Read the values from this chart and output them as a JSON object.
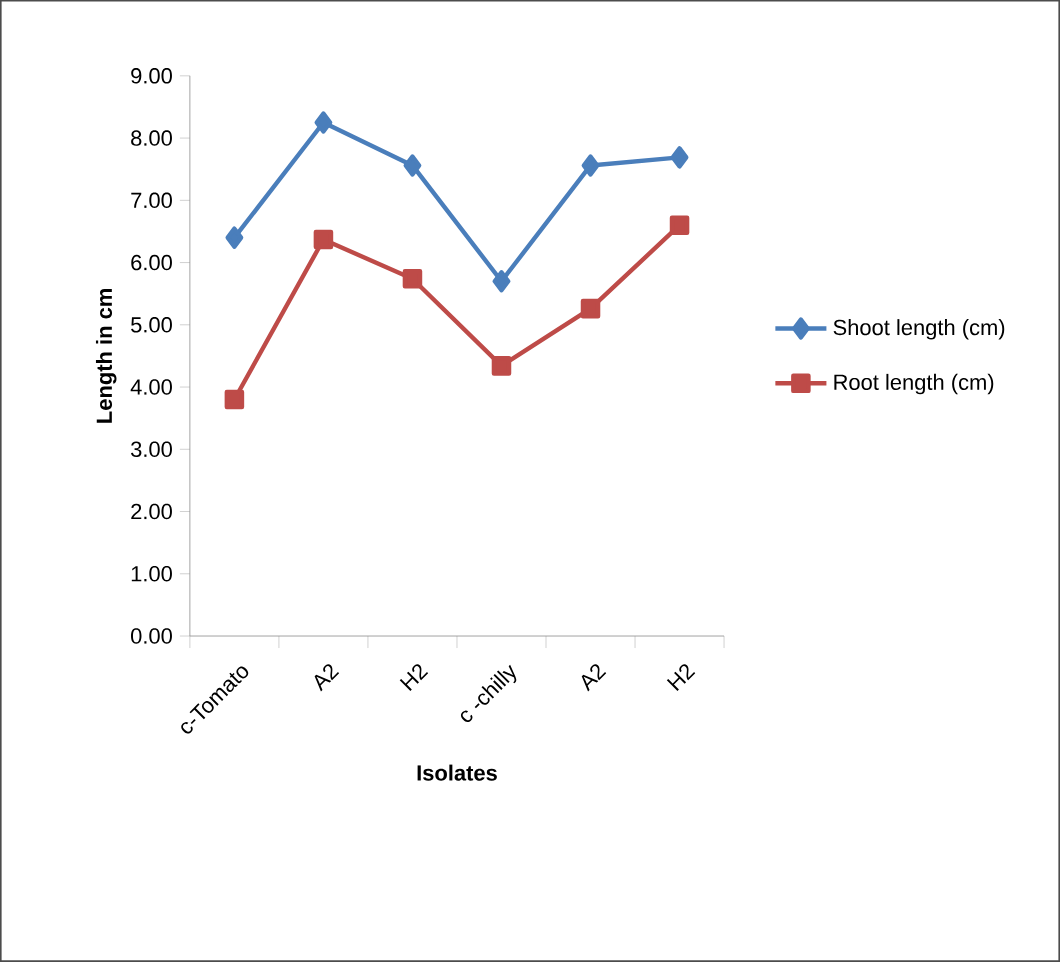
{
  "chart_data": {
    "type": "line",
    "xlabel": "Isolates",
    "ylabel": "Length in cm",
    "categories": [
      "c-Tomato",
      "A2",
      "H2",
      "c -chilly",
      "A2",
      "H2"
    ],
    "series": [
      {
        "name": "Shoot length (cm)",
        "color": "#4a7ebb",
        "marker": "diamond",
        "values": [
          6.4,
          8.25,
          7.56,
          5.7,
          7.56,
          7.69
        ]
      },
      {
        "name": "Root length (cm)",
        "color": "#be4b48",
        "marker": "square",
        "values": [
          3.8,
          6.37,
          5.74,
          4.34,
          5.26,
          6.6
        ]
      }
    ],
    "ylim": [
      0,
      9
    ],
    "yticks": [
      {
        "value": 0,
        "label": "0.00"
      },
      {
        "value": 1,
        "label": "1.00"
      },
      {
        "value": 2,
        "label": "2.00"
      },
      {
        "value": 3,
        "label": "3.00"
      },
      {
        "value": 4,
        "label": "4.00"
      },
      {
        "value": 5,
        "label": "5.00"
      },
      {
        "value": 6,
        "label": "6.00"
      },
      {
        "value": 7,
        "label": "7.00"
      },
      {
        "value": 8,
        "label": "8.00"
      },
      {
        "value": 9,
        "label": "9.00"
      }
    ],
    "legend": "right"
  }
}
